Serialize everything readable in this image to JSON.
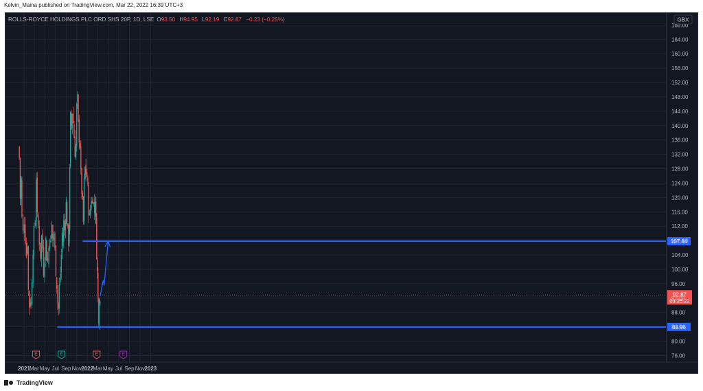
{
  "header": {
    "published": "Kelvin_Maina published on TradingView.com, Mar 22, 2022 16:39 UTC+3"
  },
  "legend": {
    "symbol": "ROLLS-ROYCE HOLDINGS PLC ORD SHS 20P, 1D, LSE",
    "o_label": "O",
    "o_value": "93.50",
    "h_label": "H",
    "h_value": "94.95",
    "l_label": "L",
    "l_value": "92.19",
    "c_label": "C",
    "c_value": "92.87",
    "change": "−0.23 (−0.25%)"
  },
  "footer": {
    "brand": "TradingView"
  },
  "colors": {
    "background": "#131722",
    "grid": "#232632",
    "up": "#26a69a",
    "down": "#ef5350",
    "level_line": "#2962ff",
    "axis_text": "#b2b5be",
    "label_bg": "#2962ff",
    "price_label_bg": "#ef5350"
  },
  "chart_data": {
    "type": "candlestick",
    "currency": "GBX",
    "y_ticks": [
      76,
      80,
      84,
      88,
      92,
      96,
      100,
      104,
      108,
      112,
      116,
      120,
      124,
      128,
      132,
      136,
      140,
      144,
      148,
      152,
      156,
      160,
      164,
      168
    ],
    "x_ticks": [
      "2021",
      "Mar",
      "May",
      "Jul",
      "Sep",
      "Nov",
      "2022",
      "Mar",
      "May",
      "Jul",
      "Sep",
      "Nov",
      "2023"
    ],
    "horizontal_levels": [
      {
        "value": 107.84,
        "label": "107.84",
        "from": "2021-12-05",
        "to": "axis"
      },
      {
        "value": 83.98,
        "label": "83.98",
        "from": "2021-07-12",
        "to": "axis"
      }
    ],
    "last_price": {
      "value": 92.87,
      "label": "92.87",
      "countdown": "03:25:22"
    },
    "projection_path": [
      {
        "date": "2022-03-16",
        "price": 92.5
      },
      {
        "date": "2022-04-03",
        "price": 97.0
      },
      {
        "date": "2022-04-08",
        "price": 95.5
      },
      {
        "date": "2022-05-01",
        "price": 107.8
      }
    ],
    "events": [
      {
        "date": "2021-03-11",
        "label": "E",
        "color": "#ef5350"
      },
      {
        "date": "2021-08-05",
        "label": "E",
        "color": "#26a69a"
      },
      {
        "date": "2022-02-24",
        "label": "E",
        "color": "#ef5350"
      },
      {
        "date": "2022-07-28",
        "label": "E",
        "color": "#9c27b0"
      }
    ],
    "price_path": [
      [
        "2020-12-01",
        134
      ],
      [
        "2020-12-05",
        131
      ],
      [
        "2020-12-10",
        120
      ],
      [
        "2020-12-15",
        125
      ],
      [
        "2020-12-20",
        114
      ],
      [
        "2020-12-26",
        110
      ],
      [
        "2021-01-02",
        114
      ],
      [
        "2021-01-08",
        109
      ],
      [
        "2021-01-14",
        104
      ],
      [
        "2021-01-20",
        108
      ],
      [
        "2021-01-26",
        94
      ],
      [
        "2021-02-01",
        90
      ],
      [
        "2021-02-06",
        92
      ],
      [
        "2021-02-10",
        90
      ],
      [
        "2021-02-16",
        98
      ],
      [
        "2021-02-22",
        106
      ],
      [
        "2021-02-27",
        110
      ],
      [
        "2021-03-06",
        113
      ],
      [
        "2021-03-10",
        114
      ],
      [
        "2021-03-13",
        126
      ],
      [
        "2021-03-18",
        114
      ],
      [
        "2021-03-24",
        112
      ],
      [
        "2021-03-30",
        108
      ],
      [
        "2021-04-06",
        104
      ],
      [
        "2021-04-12",
        109
      ],
      [
        "2021-04-18",
        106
      ],
      [
        "2021-04-24",
        100
      ],
      [
        "2021-04-30",
        104
      ],
      [
        "2021-05-07",
        108
      ],
      [
        "2021-05-12",
        104
      ],
      [
        "2021-05-18",
        102
      ],
      [
        "2021-05-24",
        106
      ],
      [
        "2021-05-30",
        110
      ],
      [
        "2021-06-05",
        108
      ],
      [
        "2021-06-10",
        112
      ],
      [
        "2021-06-16",
        108
      ],
      [
        "2021-06-22",
        110
      ],
      [
        "2021-06-28",
        105
      ],
      [
        "2021-07-04",
        100
      ],
      [
        "2021-07-09",
        96
      ],
      [
        "2021-07-14",
        91
      ],
      [
        "2021-07-18",
        89
      ],
      [
        "2021-07-23",
        95
      ],
      [
        "2021-07-29",
        99
      ],
      [
        "2021-08-04",
        104
      ],
      [
        "2021-08-09",
        110
      ],
      [
        "2021-08-14",
        108
      ],
      [
        "2021-08-18",
        113
      ],
      [
        "2021-08-23",
        111
      ],
      [
        "2021-08-28",
        115
      ],
      [
        "2021-09-01",
        118
      ],
      [
        "2021-09-06",
        114
      ],
      [
        "2021-09-11",
        110
      ],
      [
        "2021-09-15",
        108
      ],
      [
        "2021-09-19",
        112
      ],
      [
        "2021-09-22",
        127
      ],
      [
        "2021-09-26",
        142
      ],
      [
        "2021-10-01",
        140
      ],
      [
        "2021-10-06",
        144
      ],
      [
        "2021-10-12",
        141
      ],
      [
        "2021-10-17",
        137
      ],
      [
        "2021-10-22",
        133
      ],
      [
        "2021-10-27",
        134
      ],
      [
        "2021-11-01",
        145
      ],
      [
        "2021-11-06",
        147
      ],
      [
        "2021-11-10",
        140
      ],
      [
        "2021-11-15",
        137
      ],
      [
        "2021-11-20",
        135
      ],
      [
        "2021-11-25",
        126
      ],
      [
        "2021-11-30",
        122
      ],
      [
        "2021-12-05",
        118
      ],
      [
        "2021-12-09",
        113
      ],
      [
        "2021-12-14",
        124
      ],
      [
        "2021-12-19",
        128
      ],
      [
        "2021-12-24",
        127
      ],
      [
        "2021-12-30",
        126
      ],
      [
        "2022-01-04",
        122
      ],
      [
        "2022-01-09",
        117
      ],
      [
        "2022-01-14",
        114
      ],
      [
        "2022-01-19",
        117
      ],
      [
        "2022-01-24",
        120
      ],
      [
        "2022-01-29",
        118
      ],
      [
        "2022-02-03",
        121
      ],
      [
        "2022-02-08",
        118
      ],
      [
        "2022-02-12",
        116
      ],
      [
        "2022-02-16",
        120
      ],
      [
        "2022-02-20",
        113
      ],
      [
        "2022-02-24",
        105
      ],
      [
        "2022-02-28",
        99
      ],
      [
        "2022-03-04",
        92
      ],
      [
        "2022-03-08",
        87
      ],
      [
        "2022-03-10",
        93
      ],
      [
        "2022-03-13",
        91
      ],
      [
        "2022-03-16",
        92.87
      ]
    ]
  }
}
